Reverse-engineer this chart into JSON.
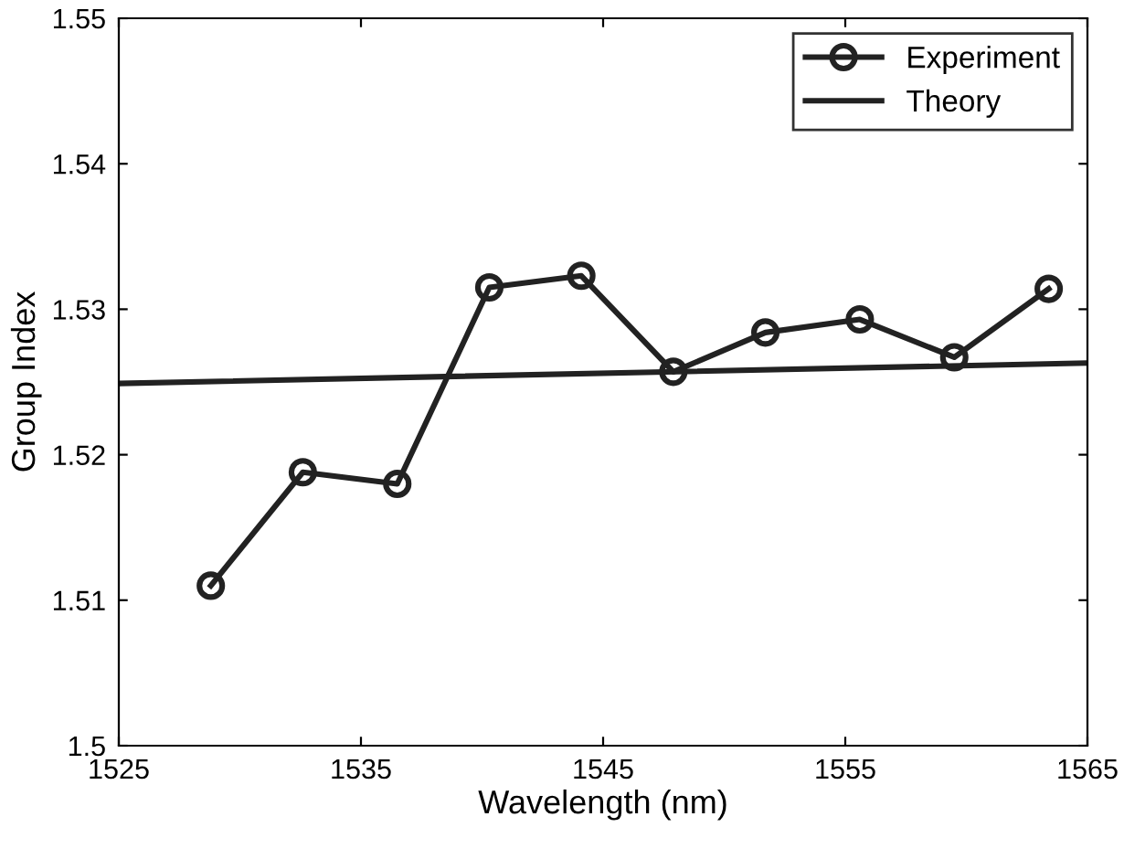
{
  "chart_data": {
    "type": "line",
    "xlabel": "Wavelength (nm)",
    "ylabel": "Group Index",
    "xlim": [
      1525,
      1565
    ],
    "xticks": [
      1525,
      1535,
      1545,
      1555,
      1565
    ],
    "ylim": [
      1.5,
      1.55
    ],
    "yticks": [
      1.5,
      1.51,
      1.52,
      1.53,
      1.54,
      1.55
    ],
    "grid": false,
    "legend": "top right",
    "series": [
      {
        "name": "Experiment",
        "color": "#222222",
        "marker": "circle",
        "x": [
          1528.8,
          1532.6,
          1536.5,
          1540.3,
          1544.1,
          1547.9,
          1551.7,
          1555.6,
          1559.5,
          1563.4
        ],
        "values": [
          1.511,
          1.5188,
          1.518,
          1.5315,
          1.5323,
          1.5257,
          1.5284,
          1.5293,
          1.5267,
          1.5314
        ]
      },
      {
        "name": "Theory",
        "color": "#222222",
        "marker": "none",
        "x": [
          1525,
          1565
        ],
        "values": [
          1.5249,
          1.5263
        ]
      }
    ]
  }
}
